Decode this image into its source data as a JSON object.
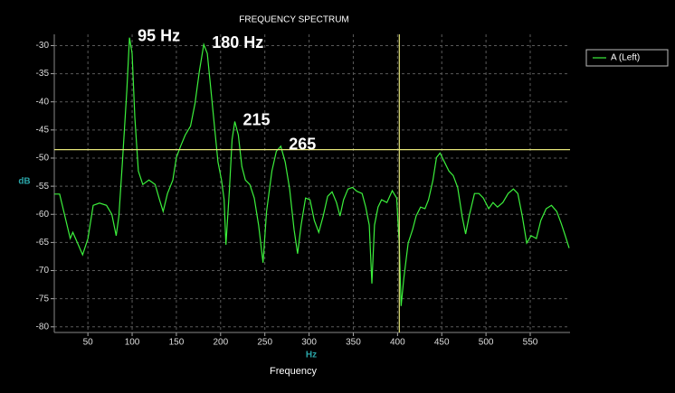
{
  "chart_data": {
    "type": "line",
    "title": "FREQUENCY SPECTRUM",
    "x_label": "Frequency",
    "x_unit": "Hz",
    "y_label": "dB",
    "xlim": [
      12,
      595
    ],
    "ylim": [
      -81,
      -28
    ],
    "xticks": [
      50,
      100,
      150,
      200,
      250,
      300,
      350,
      400,
      450,
      500,
      550
    ],
    "yticks": [
      -30,
      -35,
      -40,
      -45,
      -50,
      -55,
      -60,
      -65,
      -70,
      -75,
      -80
    ],
    "grid": true,
    "legend": "right",
    "x": [
      12,
      18,
      24,
      30,
      33,
      38,
      44,
      50,
      56,
      63,
      71,
      77,
      82,
      85,
      89,
      94,
      97,
      100,
      103,
      107,
      112,
      119,
      126,
      131,
      135,
      140,
      146,
      150,
      155,
      160,
      166,
      171,
      176,
      181,
      185,
      189,
      193,
      197,
      201,
      204,
      206,
      210,
      213,
      216,
      220,
      224,
      228,
      233,
      238,
      243,
      248,
      252,
      258,
      263,
      268,
      273,
      278,
      283,
      287,
      291,
      296,
      301,
      306,
      311,
      316,
      321,
      326,
      331,
      335,
      339,
      344,
      349,
      354,
      360,
      364,
      368,
      371,
      374,
      378,
      382,
      388,
      394,
      399,
      402,
      404,
      407,
      412,
      417,
      421,
      426,
      431,
      435,
      440,
      444,
      448,
      453,
      458,
      463,
      468,
      473,
      477,
      481,
      487,
      492,
      497,
      503,
      508,
      513,
      519,
      525,
      531,
      536,
      541,
      546,
      551,
      557,
      562,
      568,
      574,
      580,
      585,
      589,
      594
    ],
    "series": [
      {
        "name": "A (Left)",
        "color": "#3cf03c",
        "values": [
          -56.4,
          -56.4,
          -60.3,
          -64.3,
          -63.2,
          -65,
          -67.2,
          -64.3,
          -58.4,
          -58,
          -58.4,
          -60,
          -63.8,
          -60.3,
          -50.7,
          -37.9,
          -28.6,
          -31.4,
          -42.7,
          -52.3,
          -54.7,
          -53.9,
          -54.7,
          -57.4,
          -59.5,
          -56.3,
          -53.9,
          -49.9,
          -47.8,
          -45.9,
          -44.3,
          -40.3,
          -34.6,
          -29.8,
          -31.4,
          -37.9,
          -44.3,
          -50.7,
          -53.9,
          -57.4,
          -65.4,
          -55.5,
          -46.7,
          -43.5,
          -45.9,
          -51.5,
          -53.9,
          -54.7,
          -57.1,
          -61.9,
          -68.6,
          -59.5,
          -52.3,
          -48.8,
          -47.9,
          -50.7,
          -55.5,
          -62.7,
          -67,
          -61.9,
          -57.1,
          -57.4,
          -61.1,
          -63.2,
          -60.3,
          -56.8,
          -56,
          -57.9,
          -60.3,
          -57.4,
          -55.5,
          -55.2,
          -55.9,
          -56.3,
          -58.7,
          -61.9,
          -72.3,
          -61.9,
          -58.7,
          -57.4,
          -57.9,
          -55.8,
          -57.1,
          -65.4,
          -76.3,
          -71.5,
          -65.1,
          -62.7,
          -60.3,
          -58.7,
          -59,
          -57.4,
          -53.9,
          -49.9,
          -49.1,
          -50.7,
          -52.3,
          -53.1,
          -55.2,
          -60.3,
          -63.5,
          -60.3,
          -56.3,
          -56.3,
          -57.1,
          -59,
          -57.9,
          -58.7,
          -57.9,
          -56.3,
          -55.5,
          -56.3,
          -60.3,
          -65.1,
          -63.8,
          -64.3,
          -61.1,
          -59,
          -58.4,
          -59.5,
          -61.6,
          -63.5,
          -66
        ]
      }
    ],
    "cursors": {
      "x": 402,
      "y": -48.5,
      "color": "#e6e67a"
    },
    "annotations": [
      {
        "text": "95 Hz",
        "x": 97,
        "y": -28.6
      },
      {
        "text": "180 Hz",
        "x": 181,
        "y": -29.8
      },
      {
        "text": "215",
        "x": 216,
        "y": -43.5
      },
      {
        "text": "265",
        "x": 268,
        "y": -47.9
      }
    ]
  }
}
